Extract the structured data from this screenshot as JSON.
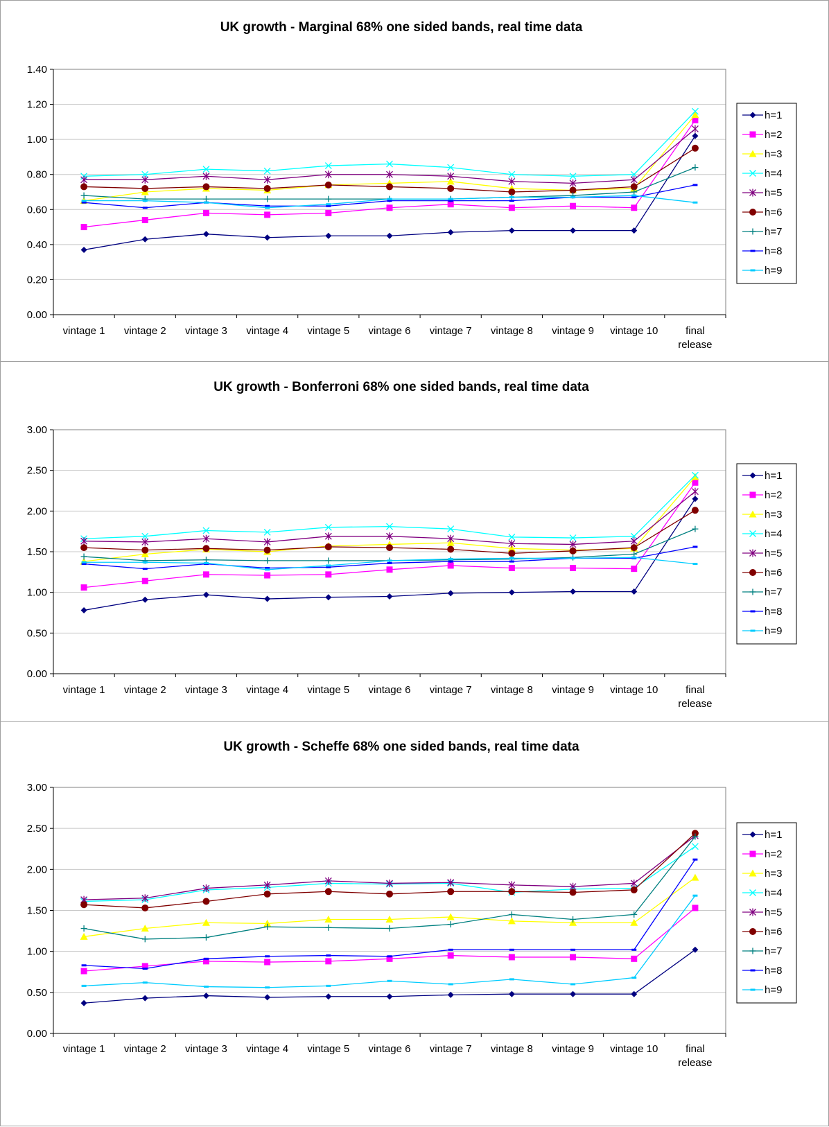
{
  "chart_data": [
    {
      "type": "line",
      "title": "UK growth - Marginal 68% one sided bands, real time data",
      "categories": [
        "vintage 1",
        "vintage 2",
        "vintage 3",
        "vintage 4",
        "vintage 5",
        "vintage 6",
        "vintage 7",
        "vintage 8",
        "vintage 9",
        "vintage 10",
        "final release"
      ],
      "ylim": [
        0,
        1.4
      ],
      "yticks": [
        "0.00",
        "0.20",
        "0.40",
        "0.60",
        "0.80",
        "1.00",
        "1.20",
        "1.40"
      ],
      "grid": true,
      "legend_position": "right",
      "series": [
        {
          "name": "h=1",
          "values": [
            0.37,
            0.43,
            0.46,
            0.44,
            0.45,
            0.45,
            0.47,
            0.48,
            0.48,
            0.48,
            1.02
          ]
        },
        {
          "name": "h=2",
          "values": [
            0.5,
            0.54,
            0.58,
            0.57,
            0.58,
            0.61,
            0.63,
            0.61,
            0.62,
            0.61,
            1.11
          ]
        },
        {
          "name": "h=3",
          "values": [
            0.65,
            0.7,
            0.72,
            0.71,
            0.74,
            0.75,
            0.76,
            0.72,
            0.71,
            0.72,
            1.14
          ]
        },
        {
          "name": "h=4",
          "values": [
            0.79,
            0.8,
            0.83,
            0.82,
            0.85,
            0.86,
            0.84,
            0.8,
            0.79,
            0.8,
            1.16
          ]
        },
        {
          "name": "h=5",
          "values": [
            0.77,
            0.77,
            0.79,
            0.77,
            0.8,
            0.8,
            0.79,
            0.76,
            0.75,
            0.77,
            1.06
          ]
        },
        {
          "name": "h=6",
          "values": [
            0.73,
            0.72,
            0.73,
            0.72,
            0.74,
            0.73,
            0.72,
            0.7,
            0.71,
            0.73,
            0.95
          ]
        },
        {
          "name": "h=7",
          "values": [
            0.68,
            0.66,
            0.66,
            0.66,
            0.66,
            0.66,
            0.66,
            0.67,
            0.68,
            0.7,
            0.84
          ]
        },
        {
          "name": "h=8",
          "values": [
            0.64,
            0.61,
            0.64,
            0.62,
            0.62,
            0.65,
            0.65,
            0.65,
            0.67,
            0.67,
            0.74
          ]
        },
        {
          "name": "h=9",
          "values": [
            0.65,
            0.65,
            0.64,
            0.61,
            0.63,
            0.66,
            0.66,
            0.67,
            0.67,
            0.68,
            0.64
          ]
        }
      ]
    },
    {
      "type": "line",
      "title": "UK growth - Bonferroni 68% one sided bands, real time data",
      "categories": [
        "vintage 1",
        "vintage 2",
        "vintage 3",
        "vintage 4",
        "vintage 5",
        "vintage 6",
        "vintage 7",
        "vintage 8",
        "vintage 9",
        "vintage 10",
        "final release"
      ],
      "ylim": [
        0,
        3.0
      ],
      "yticks": [
        "0.00",
        "0.50",
        "1.00",
        "1.50",
        "2.00",
        "2.50",
        "3.00"
      ],
      "grid": true,
      "legend_position": "right",
      "series": [
        {
          "name": "h=1",
          "values": [
            0.78,
            0.91,
            0.97,
            0.92,
            0.94,
            0.95,
            0.99,
            1.0,
            1.01,
            1.01,
            2.15
          ]
        },
        {
          "name": "h=2",
          "values": [
            1.06,
            1.14,
            1.22,
            1.21,
            1.22,
            1.28,
            1.33,
            1.3,
            1.3,
            1.29,
            2.35
          ]
        },
        {
          "name": "h=3",
          "values": [
            1.38,
            1.47,
            1.53,
            1.5,
            1.57,
            1.59,
            1.61,
            1.54,
            1.52,
            1.54,
            2.42
          ]
        },
        {
          "name": "h=4",
          "values": [
            1.66,
            1.69,
            1.76,
            1.74,
            1.8,
            1.81,
            1.78,
            1.68,
            1.67,
            1.69,
            2.44
          ]
        },
        {
          "name": "h=5",
          "values": [
            1.63,
            1.62,
            1.66,
            1.62,
            1.69,
            1.69,
            1.66,
            1.6,
            1.59,
            1.63,
            2.24
          ]
        },
        {
          "name": "h=6",
          "values": [
            1.55,
            1.52,
            1.54,
            1.52,
            1.56,
            1.55,
            1.53,
            1.48,
            1.51,
            1.55,
            2.01
          ]
        },
        {
          "name": "h=7",
          "values": [
            1.44,
            1.39,
            1.4,
            1.39,
            1.39,
            1.39,
            1.4,
            1.41,
            1.43,
            1.47,
            1.78
          ]
        },
        {
          "name": "h=8",
          "values": [
            1.35,
            1.29,
            1.35,
            1.3,
            1.31,
            1.36,
            1.38,
            1.38,
            1.42,
            1.42,
            1.56
          ]
        },
        {
          "name": "h=9",
          "values": [
            1.37,
            1.37,
            1.36,
            1.28,
            1.33,
            1.39,
            1.41,
            1.42,
            1.42,
            1.43,
            1.35
          ]
        }
      ]
    },
    {
      "type": "line",
      "title": "UK growth - Scheffe 68% one sided bands, real time data",
      "categories": [
        "vintage 1",
        "vintage 2",
        "vintage 3",
        "vintage 4",
        "vintage 5",
        "vintage 6",
        "vintage 7",
        "vintage 8",
        "vintage 9",
        "vintage 10",
        "final release"
      ],
      "ylim": [
        0,
        3.0
      ],
      "yticks": [
        "0.00",
        "0.50",
        "1.00",
        "1.50",
        "2.00",
        "2.50",
        "3.00"
      ],
      "grid": true,
      "legend_position": "right",
      "series": [
        {
          "name": "h=1",
          "values": [
            0.37,
            0.43,
            0.46,
            0.44,
            0.45,
            0.45,
            0.47,
            0.48,
            0.48,
            0.48,
            1.02
          ]
        },
        {
          "name": "h=2",
          "values": [
            0.76,
            0.82,
            0.88,
            0.87,
            0.88,
            0.91,
            0.95,
            0.93,
            0.93,
            0.91,
            1.53
          ]
        },
        {
          "name": "h=3",
          "values": [
            1.18,
            1.28,
            1.35,
            1.34,
            1.39,
            1.39,
            1.42,
            1.37,
            1.35,
            1.35,
            1.9
          ]
        },
        {
          "name": "h=4",
          "values": [
            1.61,
            1.63,
            1.75,
            1.78,
            1.83,
            1.82,
            1.83,
            1.72,
            1.76,
            1.77,
            2.28
          ]
        },
        {
          "name": "h=5",
          "values": [
            1.63,
            1.65,
            1.77,
            1.81,
            1.86,
            1.83,
            1.84,
            1.81,
            1.79,
            1.83,
            2.41
          ]
        },
        {
          "name": "h=6",
          "values": [
            1.57,
            1.53,
            1.61,
            1.7,
            1.73,
            1.7,
            1.73,
            1.73,
            1.72,
            1.75,
            2.44
          ]
        },
        {
          "name": "h=7",
          "values": [
            1.28,
            1.15,
            1.17,
            1.3,
            1.29,
            1.28,
            1.33,
            1.45,
            1.39,
            1.45,
            2.4
          ]
        },
        {
          "name": "h=8",
          "values": [
            0.83,
            0.79,
            0.91,
            0.94,
            0.95,
            0.94,
            1.02,
            1.02,
            1.02,
            1.02,
            2.12
          ]
        },
        {
          "name": "h=9",
          "values": [
            0.58,
            0.62,
            0.57,
            0.56,
            0.58,
            0.64,
            0.6,
            0.66,
            0.6,
            0.68,
            1.68
          ]
        }
      ]
    }
  ],
  "series_styles": [
    {
      "color": "#000080",
      "marker": "diamond"
    },
    {
      "color": "#ff00ff",
      "marker": "square"
    },
    {
      "color": "#ffff00",
      "marker": "triangle"
    },
    {
      "color": "#00ffff",
      "marker": "x"
    },
    {
      "color": "#800080",
      "marker": "asterisk"
    },
    {
      "color": "#800000",
      "marker": "circle"
    },
    {
      "color": "#008080",
      "marker": "plus"
    },
    {
      "color": "#0000ff",
      "marker": "dash"
    },
    {
      "color": "#00ccff",
      "marker": "dash"
    }
  ]
}
